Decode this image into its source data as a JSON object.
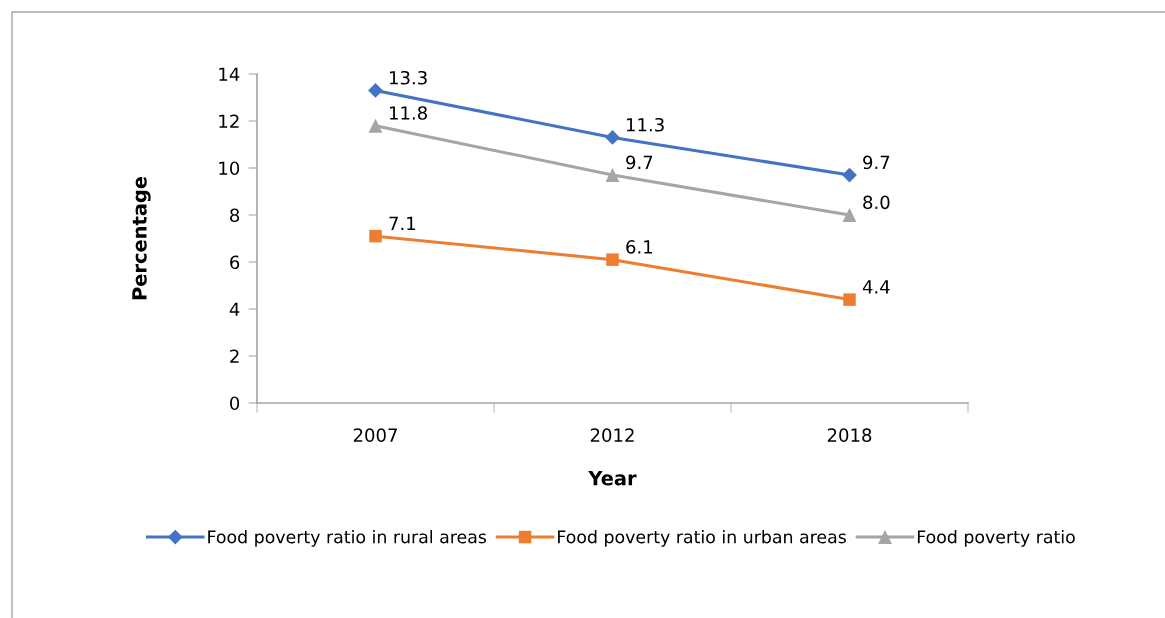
{
  "chart_data": {
    "type": "line",
    "xlabel": "Year",
    "ylabel": "Percentage",
    "categories": [
      "2007",
      "2012",
      "2018"
    ],
    "series": [
      {
        "name": "Food poverty ratio in rural areas",
        "color": "#4472c4",
        "marker": "diamond",
        "values": [
          13.3,
          11.3,
          9.7
        ],
        "value_labels": [
          "13.3",
          "11.3",
          "9.7"
        ]
      },
      {
        "name": "Food poverty ratio in urban areas",
        "color": "#ed7d31",
        "marker": "square",
        "values": [
          7.1,
          6.1,
          4.4
        ],
        "value_labels": [
          "7.1",
          "6.1",
          "4.4"
        ]
      },
      {
        "name": "Food poverty ratio",
        "color": "#a5a5a5",
        "marker": "triangle",
        "values": [
          11.8,
          9.7,
          8.0
        ],
        "value_labels": [
          "11.8",
          "9.7",
          "8.0"
        ]
      }
    ],
    "ylim": [
      0,
      14
    ],
    "yticks": [
      0,
      2,
      4,
      6,
      8,
      10,
      12,
      14
    ],
    "legend": "bottom"
  }
}
